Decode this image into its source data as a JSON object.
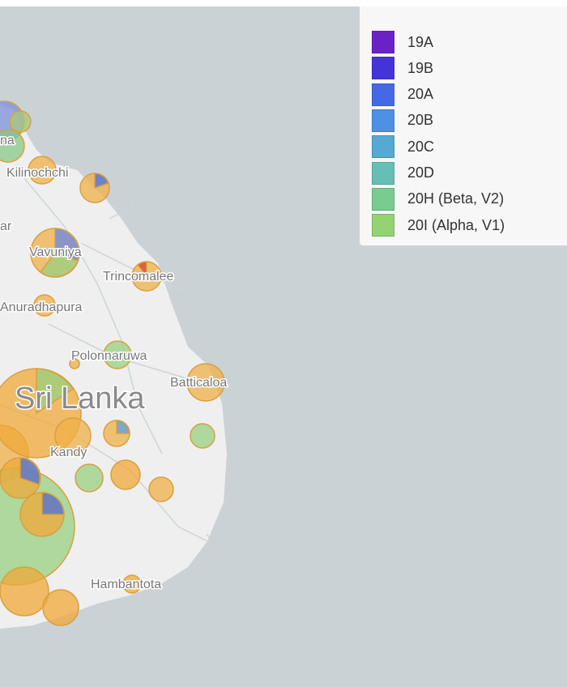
{
  "legend": {
    "items": [
      {
        "label": "19A",
        "color": "#6a22c6"
      },
      {
        "label": "19B",
        "color": "#4434d8"
      },
      {
        "label": "20A",
        "color": "#4768e6"
      },
      {
        "label": "20B",
        "color": "#4d90e4"
      },
      {
        "label": "20C",
        "color": "#55a9d2"
      },
      {
        "label": "20D",
        "color": "#66bfb6"
      },
      {
        "label": "20H (Beta, V2)",
        "color": "#79cb8f"
      },
      {
        "label": "20I (Alpha, V1)",
        "color": "#95d271"
      }
    ]
  },
  "places": [
    "Kilinochchi",
    "Vavuniya",
    "Trincomalee",
    "Anuradhapura",
    "Polonnaruwa",
    "Batticaloa",
    "Kandy",
    "Hambantota",
    "na",
    "ar"
  ],
  "country": "Sri Lanka"
}
